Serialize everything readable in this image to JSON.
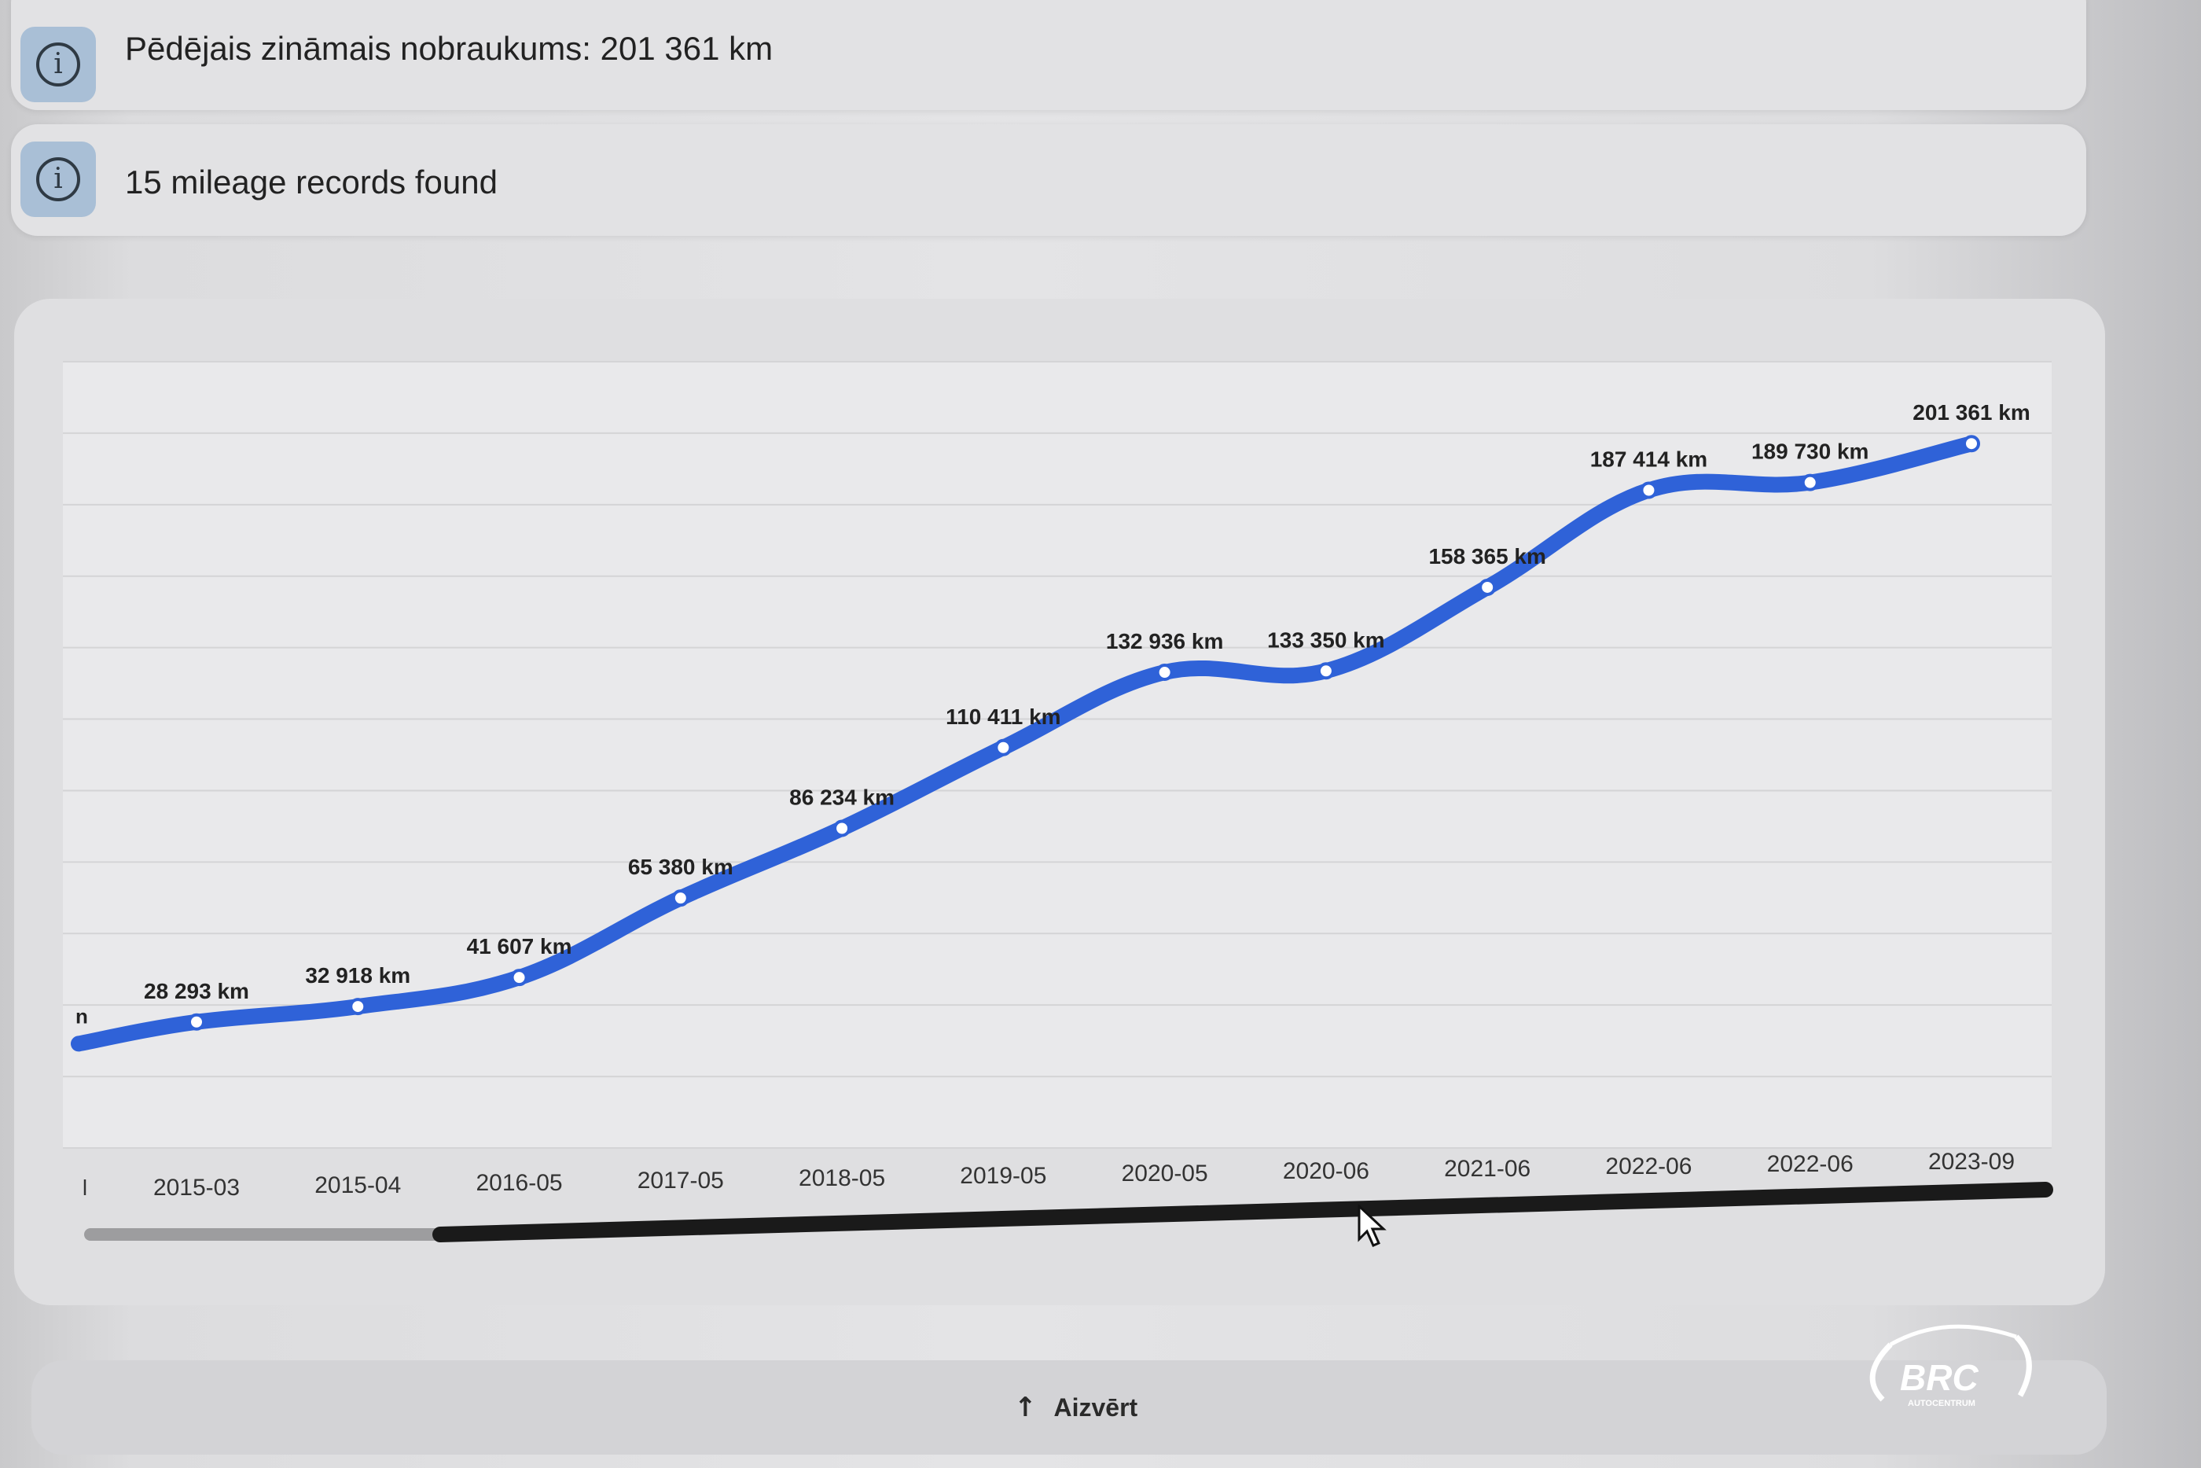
{
  "info": {
    "last_known_mileage": "Pēdējais zināmais nobraukums: 201 361 km",
    "records_found": "15 mileage records found"
  },
  "chart_data": {
    "type": "line",
    "categories": [
      "2015-03",
      "2015-04",
      "2016-05",
      "2017-05",
      "2018-05",
      "2019-05",
      "2020-05",
      "2020-06",
      "2021-06",
      "2022-06",
      "2022-06",
      "2023-09"
    ],
    "values": [
      28293,
      32918,
      41607,
      65380,
      86234,
      110411,
      132936,
      133350,
      158365,
      187414,
      189730,
      201361
    ],
    "labels": [
      "28 293 km",
      "32 918 km",
      "41 607 km",
      "65 380 km",
      "86 234 km",
      "110 411 km",
      "132 936 km",
      "133 350 km",
      "158 365 km",
      "187 414 km",
      "189 730 km",
      "201 361 km"
    ],
    "partial_left_tick": "l",
    "partial_left_label": "n",
    "ylim": [
      0,
      240000
    ],
    "grid": true,
    "line_color": "#2f62d8",
    "scrollbar_thumb_color": "#1a1a1a"
  },
  "footer": {
    "close_label": "Aizvērt",
    "close_icon": "arrow-up-icon"
  },
  "logo": {
    "text": "BRC",
    "subtext": "AUTOCENTRUM"
  }
}
